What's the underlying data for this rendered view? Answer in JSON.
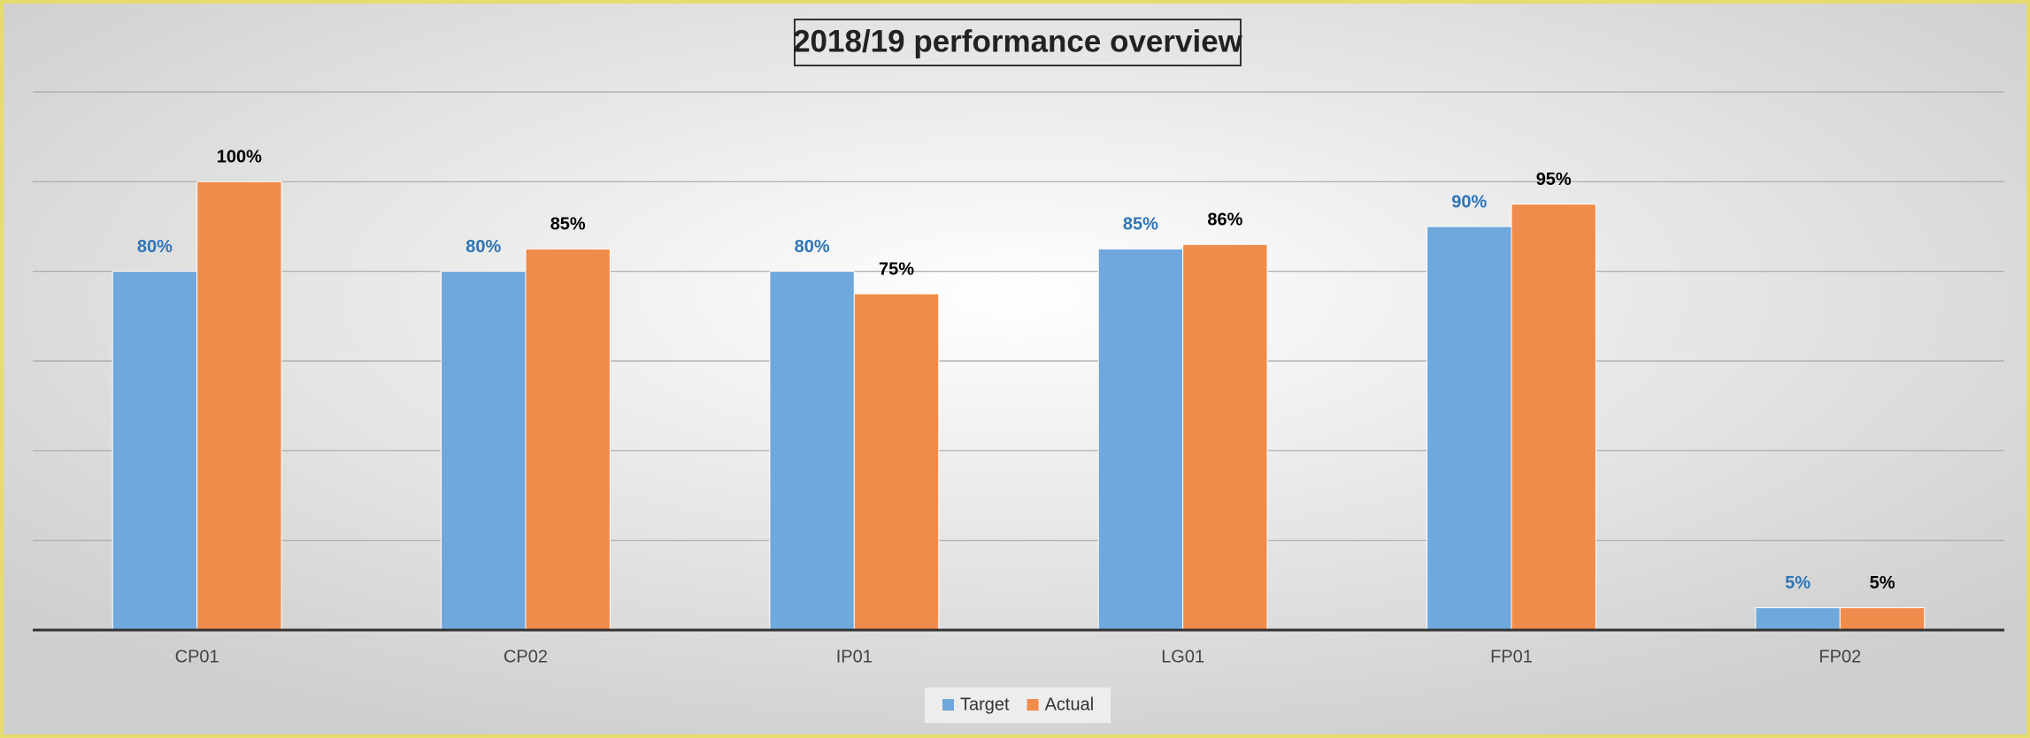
{
  "chart_data": {
    "type": "bar",
    "title": "2018/19 performance overview",
    "categories": [
      "CP01",
      "CP02",
      "IP01",
      "LG01",
      "FP01",
      "FP02"
    ],
    "series": [
      {
        "name": "Target",
        "color": "#6fa8dc",
        "label_color": "#2e75b6",
        "values": [
          80,
          80,
          80,
          85,
          90,
          5
        ],
        "value_labels": [
          "80%",
          "80%",
          "80%",
          "85%",
          "90%",
          "5%"
        ]
      },
      {
        "name": "Actual",
        "color": "#f08c4b",
        "label_color": "#000000",
        "values": [
          100,
          85,
          75,
          86,
          95,
          5
        ],
        "value_labels": [
          "100%",
          "85%",
          "75%",
          "86%",
          "95%",
          "5%"
        ]
      }
    ],
    "ylim": [
      0,
      120
    ],
    "yticks": [
      0,
      20,
      40,
      60,
      80,
      100,
      120
    ],
    "grid": true,
    "legend": "bottom"
  }
}
